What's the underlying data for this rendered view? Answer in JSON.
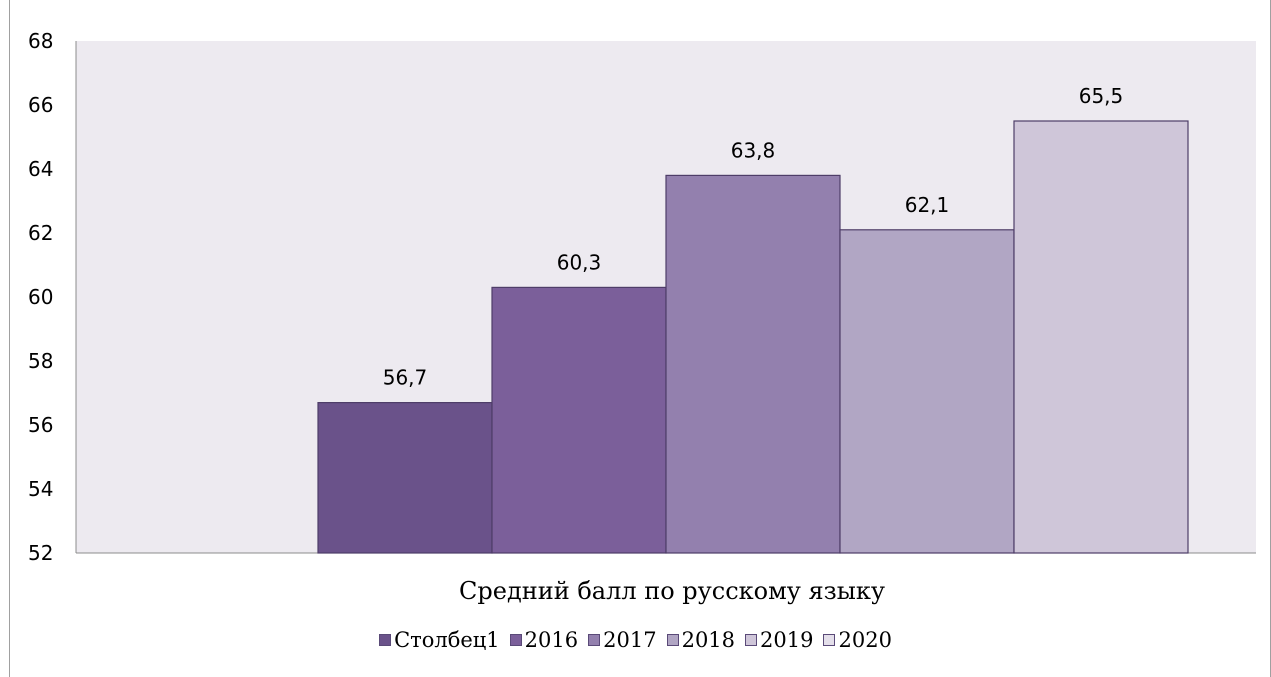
{
  "chart_data": {
    "type": "bar",
    "title": "",
    "categories": [
      "Средний балл по русскому языку"
    ],
    "xlabel": "",
    "ylabel": "",
    "ylim": [
      52,
      68
    ],
    "yticks": [
      "52",
      "54",
      "56",
      "58",
      "60",
      "62",
      "64",
      "66",
      "68"
    ],
    "grid": false,
    "legend_position": "bottom",
    "series": [
      {
        "name": "Столбец1",
        "values": [
          56.7
        ],
        "label": "56,7",
        "color": "#6a528a"
      },
      {
        "name": "2016",
        "values": [
          60.3
        ],
        "label": "60,3",
        "color": "#7b5f9a"
      },
      {
        "name": "2017",
        "values": [
          63.8
        ],
        "label": "63,8",
        "color": "#9380ae"
      },
      {
        "name": "2018",
        "values": [
          62.1
        ],
        "label": "62,1",
        "color": "#b1a6c4"
      },
      {
        "name": "2019",
        "values": [
          65.5
        ],
        "label": "65,5",
        "color": "#cfc6d9"
      }
    ],
    "legend": [
      {
        "name": "Столбец1",
        "color": "#6a528a"
      },
      {
        "name": "2016",
        "color": "#7b5f9a"
      },
      {
        "name": "2017",
        "color": "#9380ae"
      },
      {
        "name": "2018",
        "color": "#b1a6c4"
      },
      {
        "name": "2019",
        "color": "#cfc6d9"
      },
      {
        "name": "2020",
        "color": "#e4dfea"
      }
    ],
    "plot_background": "#edeaf0"
  }
}
